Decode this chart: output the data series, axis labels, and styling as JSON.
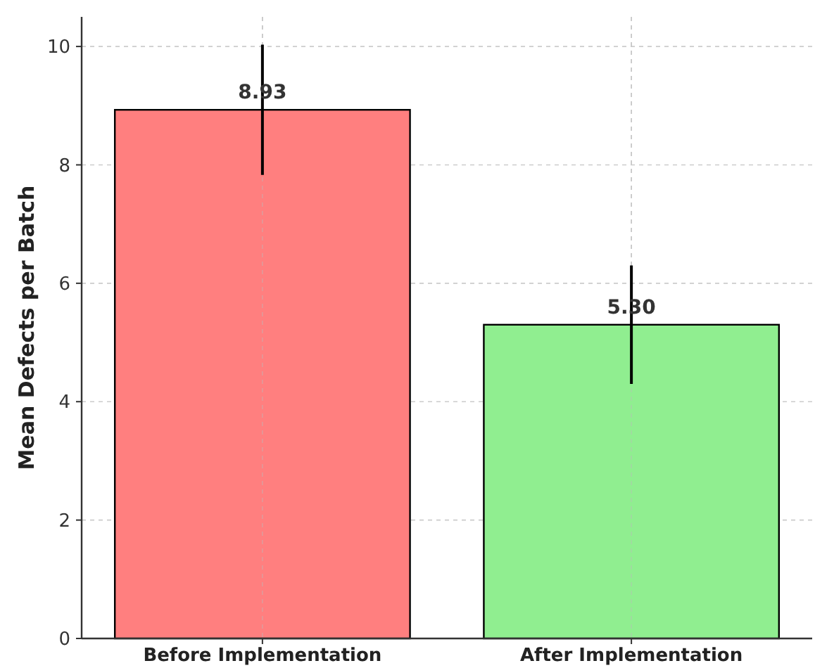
{
  "chart_data": {
    "type": "bar",
    "ylabel": "Mean Defects per Batch",
    "categories": [
      "Before Implementation",
      "After Implementation"
    ],
    "values": [
      8.93,
      5.3
    ],
    "colors": [
      "#ff7f7f",
      "#90ee90"
    ],
    "errors": [
      1.1,
      1.0
    ],
    "value_labels": [
      "8.93",
      "5.30"
    ],
    "ylim": [
      0,
      10.5
    ],
    "yticks": [
      0,
      2,
      4,
      6,
      8,
      10
    ],
    "grid": true
  }
}
